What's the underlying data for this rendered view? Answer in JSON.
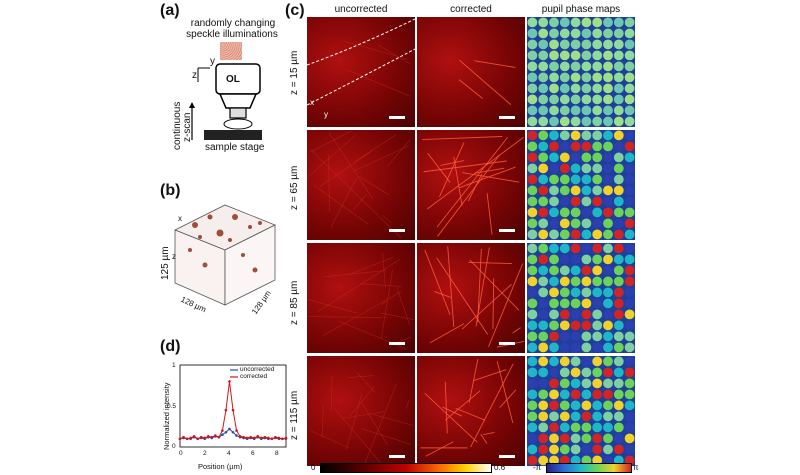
{
  "panel_a": {
    "label": "(a)",
    "title_line1": "randomly changing",
    "title_line2": "speckle illuminations",
    "axis_z": "z",
    "axis_y": "y",
    "objective": "OL",
    "scan_line1": "continuous",
    "scan_line2": "z-scan",
    "stage": "sample stage"
  },
  "panel_b": {
    "label": "(b)",
    "axis_x": "x",
    "axis_z": "z",
    "depth": "125 µm",
    "width1": "128 µm",
    "width2": "128 µm"
  },
  "panel_c": {
    "label": "(c)",
    "col_uncorrected": "uncorrected",
    "col_corrected": "corrected",
    "col_pupil": "pupil phase maps",
    "rows": [
      {
        "label": "z = 15 µm"
      },
      {
        "label": "z = 65 µm"
      },
      {
        "label": "z = 85 µm"
      },
      {
        "label": "z = 115 µm"
      }
    ],
    "axis_x": "x",
    "axis_y": "y",
    "cbar1_min": "0",
    "cbar1_max": "0.6",
    "cbar2_min": "-π",
    "cbar2_max": "π"
  },
  "panel_d": {
    "label": "(d)",
    "ylabel": "Normalized intensity",
    "xlabel": "Position (µm)",
    "legend_uncorrected": "uncorrected",
    "legend_corrected": "corrected",
    "xticks": [
      "0",
      "2",
      "4",
      "6",
      "8"
    ],
    "yticks": [
      "0",
      "0.5",
      "1"
    ]
  },
  "chart_data": {
    "type": "line",
    "xlabel": "Position (µm)",
    "ylabel": "Normalized intensity",
    "xlim": [
      0,
      9
    ],
    "ylim": [
      0,
      1
    ],
    "x": [
      0,
      0.3,
      0.6,
      0.9,
      1.2,
      1.5,
      1.8,
      2.1,
      2.4,
      2.7,
      3.0,
      3.3,
      3.6,
      3.9,
      4.2,
      4.5,
      4.8,
      5.1,
      5.4,
      5.7,
      6.0,
      6.3,
      6.6,
      6.9,
      7.2,
      7.5,
      7.8,
      8.1,
      8.4,
      8.7,
      9.0
    ],
    "series": [
      {
        "name": "uncorrected",
        "color": "#2a4fa8",
        "values": [
          0.1,
          0.11,
          0.1,
          0.1,
          0.12,
          0.1,
          0.11,
          0.1,
          0.12,
          0.11,
          0.13,
          0.12,
          0.15,
          0.18,
          0.22,
          0.18,
          0.14,
          0.12,
          0.11,
          0.1,
          0.11,
          0.1,
          0.12,
          0.1,
          0.11,
          0.1,
          0.1,
          0.11,
          0.1,
          0.1,
          0.1
        ]
      },
      {
        "name": "corrected",
        "color": "#d01818",
        "values": [
          0.1,
          0.12,
          0.1,
          0.11,
          0.13,
          0.1,
          0.12,
          0.11,
          0.13,
          0.12,
          0.14,
          0.12,
          0.2,
          0.45,
          0.8,
          0.45,
          0.2,
          0.13,
          0.12,
          0.11,
          0.12,
          0.11,
          0.13,
          0.11,
          0.12,
          0.11,
          0.1,
          0.12,
          0.11,
          0.1,
          0.11
        ]
      }
    ]
  }
}
